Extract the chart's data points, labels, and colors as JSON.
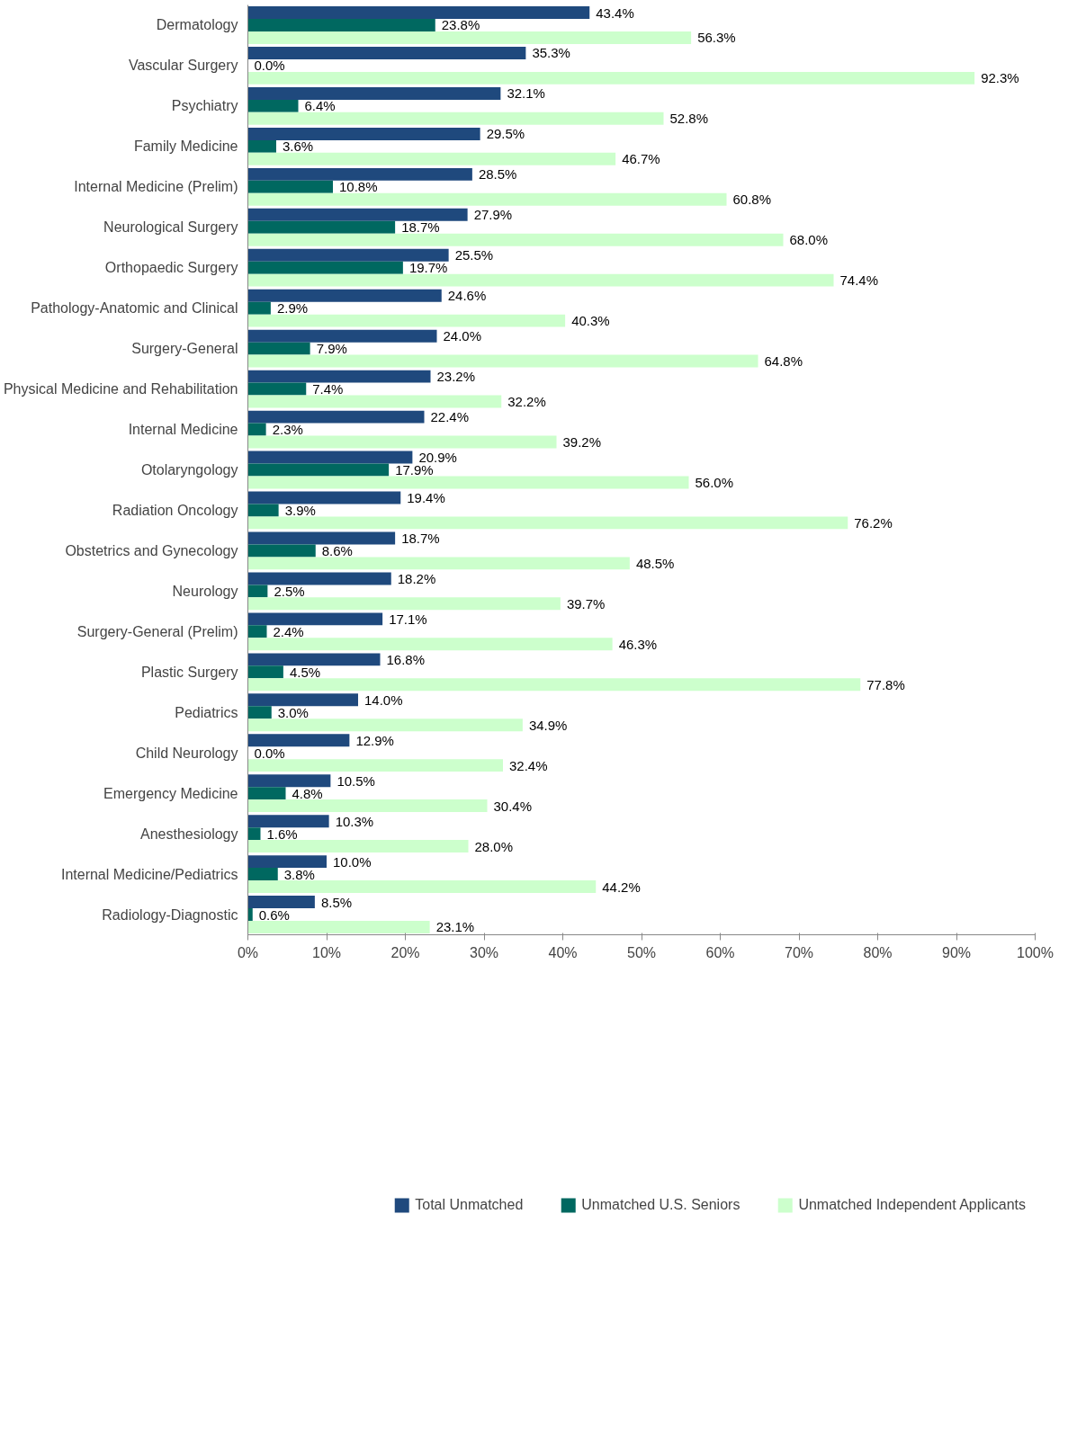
{
  "chart_data": {
    "type": "bar",
    "orientation": "horizontal",
    "categories": [
      "Dermatology",
      "Vascular Surgery",
      "Psychiatry",
      "Family Medicine",
      "Internal Medicine (Prelim)",
      "Neurological Surgery",
      "Orthopaedic Surgery",
      "Pathology-Anatomic and Clinical",
      "Surgery-General",
      "Physical Medicine and Rehabilitation",
      "Internal Medicine",
      "Otolaryngology",
      "Radiation Oncology",
      "Obstetrics and Gynecology",
      "Neurology",
      "Surgery-General (Prelim)",
      "Plastic Surgery",
      "Pediatrics",
      "Child Neurology",
      "Emergency Medicine",
      "Anesthesiology",
      "Internal Medicine/Pediatrics",
      "Radiology-Diagnostic"
    ],
    "series": [
      {
        "name": "Total Unmatched",
        "color": "#1f497d",
        "values": [
          43.4,
          35.3,
          32.1,
          29.5,
          28.5,
          27.9,
          25.5,
          24.6,
          24.0,
          23.2,
          22.4,
          20.9,
          19.4,
          18.7,
          18.2,
          17.1,
          16.8,
          14.0,
          12.9,
          10.5,
          10.3,
          10.0,
          8.5
        ],
        "value_labels": [
          "43.4%",
          "35.3%",
          "32.1%",
          "29.5%",
          "28.5%",
          "27.9%",
          "25.5%",
          "24.6%",
          "24.0%",
          "23.2%",
          "22.4%",
          "20.9%",
          "19.4%",
          "18.7%",
          "18.2%",
          "17.1%",
          "16.8%",
          "14.0%",
          "12.9%",
          "10.5%",
          "10.3%",
          "10.0%",
          "8.5%"
        ]
      },
      {
        "name": "Unmatched U.S. Seniors",
        "color": "#006860",
        "values": [
          23.8,
          0.0,
          6.4,
          3.6,
          10.8,
          18.7,
          19.7,
          2.9,
          7.9,
          7.4,
          2.3,
          17.9,
          3.9,
          8.6,
          2.5,
          2.4,
          4.5,
          3.0,
          0.0,
          4.8,
          1.6,
          3.8,
          0.6
        ],
        "value_labels": [
          "23.8%",
          "0.0%",
          "6.4%",
          "3.6%",
          "10.8%",
          "18.7%",
          "19.7%",
          "2.9%",
          "7.9%",
          "7.4%",
          "2.3%",
          "17.9%",
          "3.9%",
          "8.6%",
          "2.5%",
          "2.4%",
          "4.5%",
          "3.0%",
          "0.0%",
          "4.8%",
          "1.6%",
          "3.8%",
          "0.6%"
        ]
      },
      {
        "name": "Unmatched Independent Applicants",
        "color": "#ccffcc",
        "values": [
          56.3,
          92.3,
          52.8,
          46.7,
          60.8,
          68.0,
          74.4,
          40.3,
          64.8,
          32.2,
          39.2,
          56.0,
          76.2,
          48.5,
          39.7,
          46.3,
          77.8,
          34.9,
          32.4,
          30.4,
          28.0,
          44.2,
          23.1
        ],
        "value_labels": [
          "56.3%",
          "92.3%",
          "52.8%",
          "46.7%",
          "60.8%",
          "68.0%",
          "74.4%",
          "40.3%",
          "64.8%",
          "32.2%",
          "39.2%",
          "56.0%",
          "76.2%",
          "48.5%",
          "39.7%",
          "46.3%",
          "77.8%",
          "34.9%",
          "32.4%",
          "30.4%",
          "28.0%",
          "44.2%",
          "23.1%"
        ]
      }
    ],
    "xlim": [
      0,
      100
    ],
    "xticks": [
      {
        "value": 0,
        "label": "0%"
      },
      {
        "value": 10,
        "label": "10%"
      },
      {
        "value": 20,
        "label": "20%"
      },
      {
        "value": 30,
        "label": "30%"
      },
      {
        "value": 40,
        "label": "40%"
      },
      {
        "value": 50,
        "label": "50%"
      },
      {
        "value": 60,
        "label": "60%"
      },
      {
        "value": 70,
        "label": "70%"
      },
      {
        "value": 80,
        "label": "80%"
      },
      {
        "value": 90,
        "label": "90%"
      },
      {
        "value": 100,
        "label": "100%"
      }
    ],
    "grid": false,
    "legend": "bottom"
  }
}
